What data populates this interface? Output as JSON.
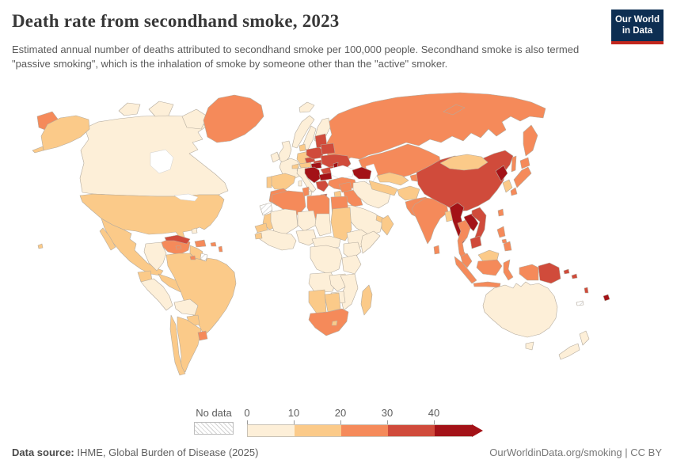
{
  "header": {
    "title": "Death rate from secondhand smoke, 2023",
    "subtitle": "Estimated annual number of deaths attributed to secondhand smoke per 100,000 people. Secondhand smoke is also termed \"passive smoking\", which is the inhalation of smoke by someone other than the \"active\" smoker."
  },
  "logo": {
    "line1": "Our World",
    "line2": "in Data",
    "bg_color": "#0d2e52",
    "accent_color": "#c2271d"
  },
  "legend": {
    "no_data_label": "No data",
    "tick_labels": [
      "0",
      "10",
      "20",
      "30",
      "40"
    ]
  },
  "footer": {
    "source_label": "Data source:",
    "source_text": " IHME, Global Burden of Disease (2025)",
    "rights": "OurWorldinData.org/smoking | CC BY"
  },
  "chart_data": {
    "type": "choropleth",
    "title": "Death rate from secondhand smoke",
    "year": 2023,
    "unit": "estimated annual deaths attributed to secondhand smoke per 100,000 people",
    "legend_position": "bottom",
    "legend_bins": [
      {
        "range": "0-10",
        "color": "#fdefd8"
      },
      {
        "range": "10-20",
        "color": "#fbca89"
      },
      {
        "range": "20-30",
        "color": "#f58a5a"
      },
      {
        "range": "30-40",
        "color": "#d04b3b"
      },
      {
        "range": "40+",
        "color": "#a31217"
      },
      {
        "range": "No data",
        "color": "hatch"
      }
    ],
    "border_color": "#b4ab9e",
    "values": {
      "Canada": "0-10",
      "United States": "10-20",
      "Greenland": "20-30",
      "Mexico": "10-20",
      "Central America": "10-20",
      "Cuba": "30-40",
      "Jamaica": "20-30",
      "Haiti and Dominican Republic": "20-30",
      "Puerto Rico": "20-30",
      "Bahamas": "0-10",
      "Lesser Antilles": "20-30",
      "Trinidad and Tobago": "20-30",
      "Venezuela": "20-30",
      "Colombia": "0-10",
      "Guyana and Suriname": "10-20",
      "French Guiana": "No data",
      "Ecuador": "10-20",
      "Peru": "0-10",
      "Brazil": "10-20",
      "Bolivia": "0-10",
      "Paraguay": "10-20",
      "Uruguay": "20-30",
      "Argentina": "10-20",
      "Chile": "10-20",
      "Iceland": "0-10",
      "Ireland": "0-10",
      "United Kingdom": "0-10",
      "Norway": "0-10",
      "Sweden": "0-10",
      "Finland": "0-10",
      "Denmark": "10-20",
      "Germany": "10-20",
      "France": "0-10",
      "Spain": "10-20",
      "Portugal": "10-20",
      "Italy": "0-10",
      "Switzerland": "10-20",
      "Austria": "10-20",
      "Czechia": "30-40",
      "Slovakia": "30-40",
      "Poland": "30-40",
      "Baltic states": "30-40",
      "Belarus": "30-40",
      "Ukraine": "30-40",
      "Moldova": "40+",
      "Hungary": "40+",
      "Romania": "30-40",
      "Balkans": "40+",
      "Bulgaria": "40+",
      "Greece": "30-40",
      "Russia": "20-30",
      "Kazakhstan": "20-30",
      "Caucasus": "40+",
      "Turkey": "20-30",
      "Syria": "20-30",
      "Iraq": "20-30",
      "Jordan": "10-20",
      "Iran": "0-10",
      "Saudi Arabia": "0-10",
      "United Arab Emirates": "10-20",
      "Yemen": "10-20",
      "Oman": "10-20",
      "Turkmenistan": "10-20",
      "Uzbekistan": "10-20",
      "Kyrgyzstan and Tajikistan": "20-30",
      "Afghanistan": "10-20",
      "Pakistan": "20-30",
      "India": "20-30",
      "Nepal": "20-30",
      "Bangladesh": "10-20",
      "Sri Lanka": "20-30",
      "China": "30-40",
      "Mongolia": "10-20",
      "North Korea": "40+",
      "South Korea": "10-20",
      "Japan": "20-30",
      "Taiwan": "20-30",
      "Myanmar": "40+",
      "Laos": "40+",
      "Thailand": "20-30",
      "Vietnam": "30-40",
      "Cambodia": "30-40",
      "Malaysia": "20-30",
      "East Malaysia": "10-20",
      "Indonesia": "20-30",
      "Philippines": "20-30",
      "Papua New Guinea": "30-40",
      "Solomon Islands": "30-40",
      "Vanuatu": "30-40",
      "Fiji": "40+",
      "New Caledonia": "No data",
      "Australia": "0-10",
      "New Zealand": "0-10",
      "Morocco": "20-30",
      "Western Sahara": "No data",
      "Algeria": "20-30",
      "Tunisia": "20-30",
      "Libya": "20-30",
      "Egypt": "20-30",
      "Mauritania": "10-20",
      "Senegal": "10-20",
      "Guinea-Bissau": "10-20",
      "Mali": "0-10",
      "Niger": "0-10",
      "Chad": "0-10",
      "Sudan": "10-20",
      "West Africa": "0-10",
      "Nigeria": "0-10",
      "Cameroon and Central Africa": "0-10",
      "Ethiopia": "0-10",
      "Somalia": "0-10",
      "Kenya": "0-10",
      "DR Congo": "0-10",
      "Tanzania": "0-10",
      "Angola": "0-10",
      "Zambia": "0-10",
      "Mozambique": "0-10",
      "Zimbabwe": "0-10",
      "Namibia": "10-20",
      "Botswana": "10-20",
      "South Africa": "20-30",
      "Lesotho": "10-20",
      "Madagascar": "10-20"
    }
  }
}
